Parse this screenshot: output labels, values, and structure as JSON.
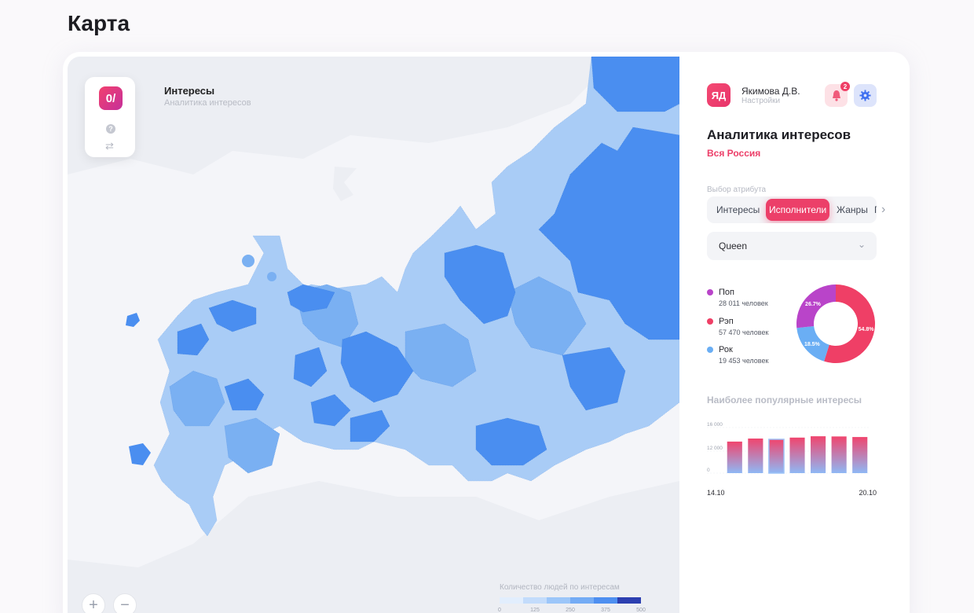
{
  "page": {
    "title": "Карта"
  },
  "logo": {
    "label": "0/"
  },
  "map": {
    "title": "Интересы",
    "subtitle": "Аналитика интересов",
    "zoom_in": "+",
    "zoom_out": "−",
    "legend": {
      "title": "Количество людей по интересам",
      "ticks": [
        "0",
        "125",
        "250",
        "375",
        "500"
      ],
      "colors": [
        "#e2eefd",
        "#c3dcfb",
        "#9cc6f9",
        "#74acf5",
        "#4e8ff0",
        "#2c3fb0"
      ]
    },
    "colors": {
      "light": "#a9ccf6",
      "medium": "#7ab0f2",
      "strong": "#4a8ef0",
      "background": "#eceef3"
    }
  },
  "user": {
    "initials": "ЯД",
    "name": "Якимова Д.В.",
    "subtitle": "Настройки",
    "notifications": "2"
  },
  "panel": {
    "title": "Аналитика интересов",
    "region": "Вся Россия",
    "attribute_label": "Выбор атрибута",
    "tabs": [
      "Интересы",
      "Исполнители",
      "Жанры",
      "Г"
    ],
    "active_tab": "Исполнители",
    "selected": "Queen",
    "genres": [
      {
        "name": "Поп",
        "count": "28 011 человек",
        "color": "#b944c9"
      },
      {
        "name": "Рэп",
        "count": "57 470 человек",
        "color": "#ef3f66"
      },
      {
        "name": "Рок",
        "count": "19 453 человек",
        "color": "#6aaef4"
      }
    ],
    "popular_title": "Наиболее популярные интересы"
  },
  "chart_data": [
    {
      "type": "pie",
      "labels": [
        "Поп",
        "Рэп",
        "Рок"
      ],
      "values": [
        26.7,
        54.8,
        18.5
      ],
      "value_labels": [
        "26.7%",
        "54.8%",
        "18.5%"
      ],
      "colors": [
        "#b944c9",
        "#ef3f66",
        "#6aaef4"
      ]
    },
    {
      "type": "bar",
      "x_labels": [
        "14.10",
        "20.10"
      ],
      "values": [
        12300,
        13100,
        12900,
        13350,
        13700,
        13650,
        13500
      ],
      "y_ticks": [
        "16 000",
        "12 000",
        "0"
      ],
      "ylim": [
        0,
        16000
      ]
    }
  ]
}
